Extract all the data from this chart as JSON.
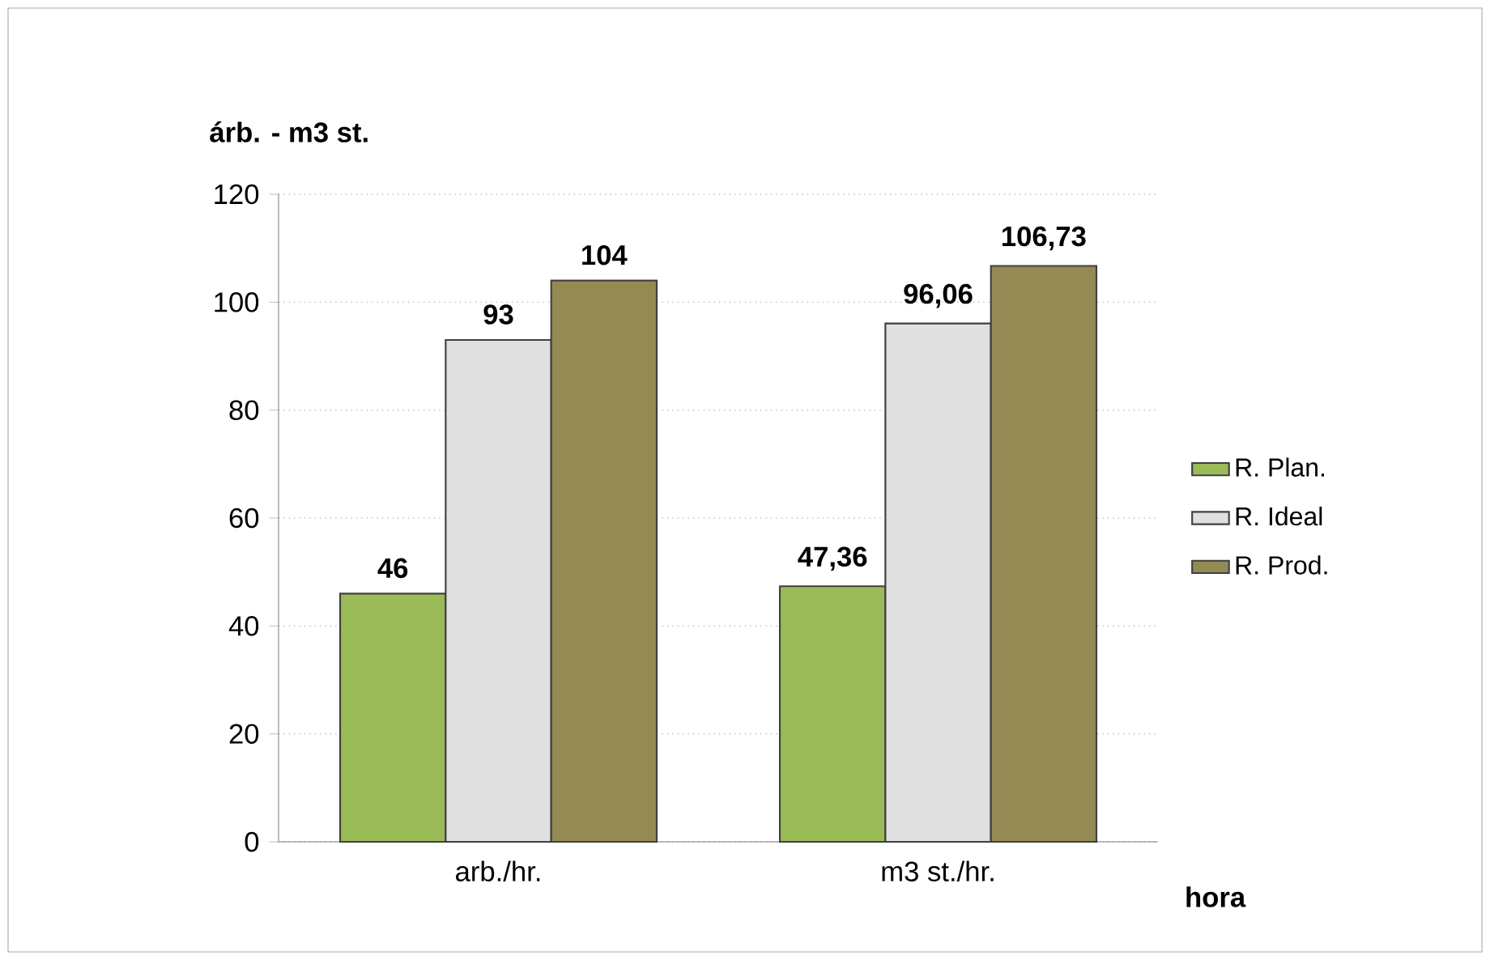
{
  "chart_data": {
    "type": "bar",
    "ylabel": "árb. - m3 st.",
    "xlabel": "hora",
    "categories": [
      "arb./hr.",
      "m3 st./hr."
    ],
    "series": [
      {
        "name": "R. Plan.",
        "color": "#9bbb59",
        "values": [
          46,
          47.36
        ],
        "value_labels": [
          "46",
          "47,36"
        ]
      },
      {
        "name": "R. Ideal",
        "color": "#e0e0e0",
        "values": [
          93,
          96.06
        ],
        "value_labels": [
          "93",
          "96,06"
        ]
      },
      {
        "name": "R. Prod.",
        "color": "#948a54",
        "values": [
          104,
          106.73
        ],
        "value_labels": [
          "104",
          "106,73"
        ]
      }
    ],
    "ylim": [
      0,
      120
    ],
    "yticks": [
      0,
      20,
      40,
      60,
      80,
      100,
      120
    ],
    "grid": "y",
    "legend": "right"
  }
}
